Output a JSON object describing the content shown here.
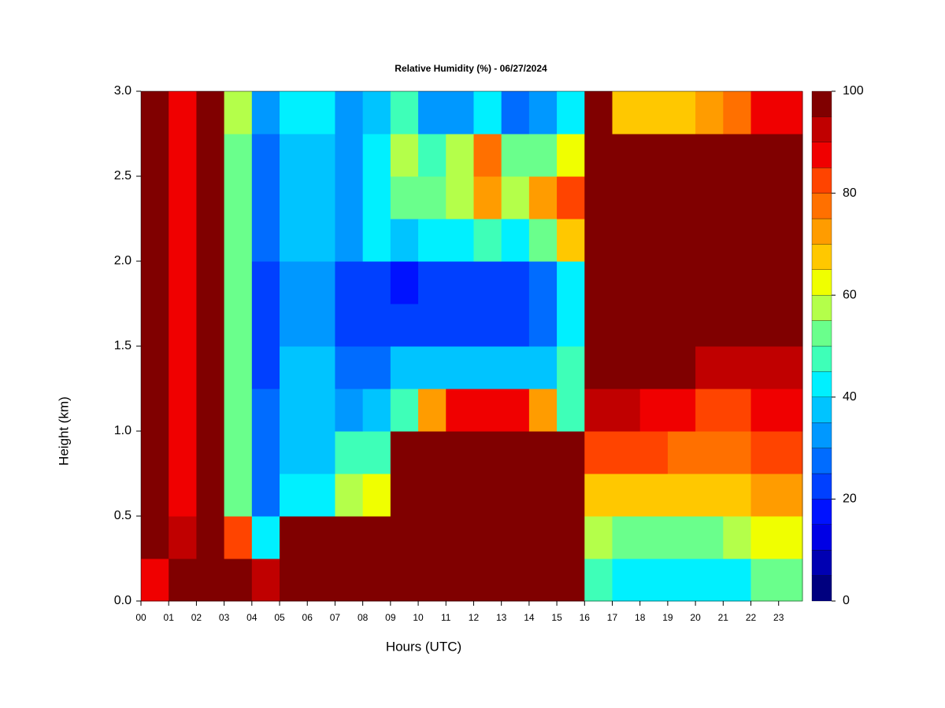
{
  "chart_data": {
    "type": "heatmap",
    "title": "Relative Humidity (%) - 06/27/2024",
    "x_label": "Hours (UTC)",
    "y_label": "Height (km)",
    "x": [
      0,
      1,
      2,
      3,
      4,
      5,
      6,
      7,
      8,
      9,
      10,
      11,
      12,
      13,
      14,
      15,
      16,
      17,
      18,
      19,
      20,
      21,
      22,
      23
    ],
    "y": [
      0,
      0.25,
      0.5,
      0.75,
      1,
      1.25,
      1.5,
      1.75,
      2,
      2.25,
      2.5,
      2.75
    ],
    "xlim": [
      0,
      23.86
    ],
    "ylim": [
      0,
      3
    ],
    "xticks": [
      {
        "value": 0,
        "label": "00"
      },
      {
        "value": 1,
        "label": "01"
      },
      {
        "value": 2,
        "label": "02"
      },
      {
        "value": 3,
        "label": "03"
      },
      {
        "value": 4,
        "label": "04"
      },
      {
        "value": 5,
        "label": "05"
      },
      {
        "value": 6,
        "label": "06"
      },
      {
        "value": 7,
        "label": "07"
      },
      {
        "value": 8,
        "label": "08"
      },
      {
        "value": 9,
        "label": "09"
      },
      10,
      11,
      12,
      13,
      14,
      15,
      16,
      17,
      18,
      19,
      20,
      21,
      22,
      23
    ],
    "yticks": [
      {
        "value": 0,
        "label": "0.0"
      },
      0.5,
      {
        "value": 1,
        "label": "1.0"
      },
      1.5,
      {
        "value": 2,
        "label": "2.0"
      },
      2.5,
      {
        "value": 3,
        "label": "3.0"
      }
    ],
    "values": [
      [
        85,
        95,
        95,
        95,
        90,
        100,
        100,
        100,
        100,
        100,
        100,
        100,
        100,
        100,
        100,
        100,
        45,
        40,
        40,
        40,
        40,
        40,
        50,
        50
      ],
      [
        100,
        90,
        95,
        80,
        40,
        100,
        100,
        95,
        100,
        100,
        100,
        100,
        100,
        100,
        100,
        100,
        55,
        50,
        50,
        50,
        50,
        55,
        60,
        60
      ],
      [
        100,
        85,
        100,
        50,
        25,
        40,
        40,
        55,
        60,
        100,
        100,
        100,
        100,
        100,
        100,
        100,
        65,
        65,
        65,
        65,
        65,
        65,
        70,
        70
      ],
      [
        100,
        85,
        100,
        50,
        25,
        35,
        35,
        45,
        45,
        100,
        100,
        100,
        100,
        100,
        100,
        100,
        80,
        80,
        80,
        75,
        75,
        75,
        80,
        80
      ],
      [
        100,
        85,
        95,
        50,
        25,
        35,
        35,
        30,
        35,
        45,
        70,
        85,
        85,
        85,
        70,
        45,
        90,
        90,
        85,
        85,
        80,
        80,
        85,
        85
      ],
      [
        100,
        85,
        95,
        50,
        20,
        35,
        35,
        25,
        25,
        35,
        35,
        35,
        35,
        35,
        35,
        45,
        100,
        95,
        95,
        95,
        90,
        90,
        90,
        90
      ],
      [
        100,
        85,
        95,
        50,
        20,
        30,
        30,
        20,
        20,
        20,
        20,
        20,
        20,
        20,
        25,
        40,
        100,
        100,
        100,
        100,
        100,
        95,
        95,
        95
      ],
      [
        100,
        85,
        95,
        50,
        20,
        30,
        30,
        20,
        20,
        15,
        20,
        20,
        20,
        20,
        25,
        40,
        100,
        100,
        100,
        100,
        100,
        100,
        100,
        100
      ],
      [
        100,
        85,
        95,
        50,
        25,
        35,
        35,
        30,
        40,
        35,
        40,
        40,
        45,
        40,
        50,
        65,
        100,
        100,
        100,
        100,
        100,
        100,
        100,
        100
      ],
      [
        100,
        85,
        95,
        50,
        25,
        35,
        35,
        30,
        40,
        50,
        50,
        55,
        70,
        55,
        70,
        80,
        100,
        100,
        100,
        100,
        100,
        100,
        100,
        100
      ],
      [
        100,
        85,
        95,
        50,
        25,
        35,
        35,
        30,
        40,
        55,
        45,
        55,
        75,
        50,
        50,
        60,
        100,
        100,
        95,
        100,
        100,
        100,
        100,
        100
      ],
      [
        100,
        85,
        95,
        55,
        30,
        40,
        40,
        30,
        35,
        45,
        30,
        30,
        40,
        25,
        30,
        40,
        100,
        65,
        65,
        65,
        70,
        75,
        85,
        85
      ]
    ],
    "levels": [
      0,
      5,
      10,
      15,
      20,
      25,
      30,
      35,
      40,
      45,
      50,
      55,
      60,
      65,
      70,
      75,
      80,
      85,
      90,
      95,
      100
    ],
    "colors": [
      "#00007f",
      "#0000b2",
      "#0000e5",
      "#0012ff",
      "#0040ff",
      "#006cff",
      "#0098ff",
      "#00c4ff",
      "#00f0ff",
      "#3effb8",
      "#6aff8c",
      "#b4ff4a",
      "#f0ff00",
      "#ffc800",
      "#ff9c00",
      "#ff7000",
      "#ff4400",
      "#f00000",
      "#c00000",
      "#800000"
    ],
    "colorbar_ticks": [
      0,
      20,
      40,
      60,
      80,
      100
    ]
  }
}
